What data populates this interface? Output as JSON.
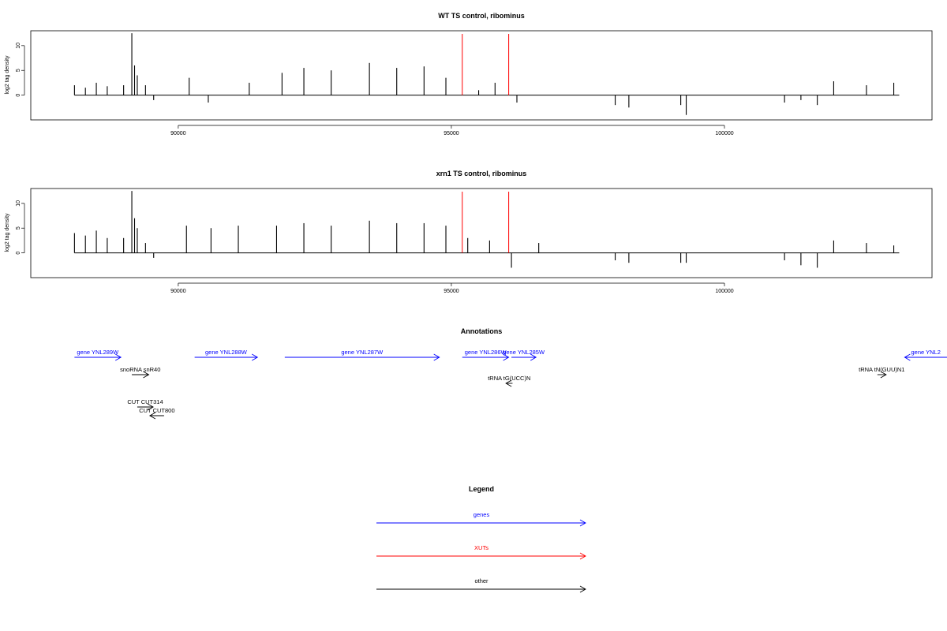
{
  "colors": {
    "gene": "#0000ff",
    "xut": "#ff0000",
    "other": "#000000",
    "marker": "#ff0000"
  },
  "panels": [
    {
      "title": "WT TS control, ribominus",
      "ylabel": "log2 tag density"
    },
    {
      "title": "xrn1 TS control, ribominus",
      "ylabel": "log2 tag density"
    }
  ],
  "chart_data": [
    {
      "type": "bar",
      "title": "WT TS control, ribominus",
      "xlabel": "",
      "ylabel": "log2 tag density",
      "xlim": [
        87300,
        103800
      ],
      "ylim": [
        -5,
        13
      ],
      "xticks": [
        90000,
        95000,
        100000
      ],
      "yticks": [
        0,
        5,
        10
      ],
      "grid": false,
      "marker_lines": [
        95200,
        96050
      ],
      "series": [
        {
          "x": [
            88100,
            88300,
            88500,
            88700,
            89000,
            89150,
            89200,
            89250,
            89400,
            89550,
            90200,
            90550,
            91300,
            91900,
            92300,
            92800,
            93500,
            94000,
            94500,
            94900,
            95500,
            95800,
            96200,
            98000,
            98250,
            99200,
            99300,
            101100,
            101400,
            101700,
            102000,
            102600,
            103100
          ],
          "values": [
            2,
            1.5,
            2.5,
            1.8,
            2,
            12.5,
            6,
            4,
            2,
            -1,
            3.5,
            -1.5,
            2.5,
            4.5,
            5.5,
            5,
            6.5,
            5.5,
            5.8,
            3.5,
            1,
            2.5,
            -1.5,
            -2,
            -2.5,
            -2,
            -4,
            -1.5,
            -1,
            -2,
            2.8,
            2,
            2.5
          ]
        }
      ]
    },
    {
      "type": "bar",
      "title": "xrn1 TS control, ribominus",
      "xlabel": "",
      "ylabel": "log2 tag density",
      "xlim": [
        87300,
        103800
      ],
      "ylim": [
        -5,
        13
      ],
      "xticks": [
        90000,
        95000,
        100000
      ],
      "yticks": [
        0,
        5,
        10
      ],
      "grid": false,
      "marker_lines": [
        95200,
        96050
      ],
      "series": [
        {
          "x": [
            88100,
            88300,
            88500,
            88700,
            89000,
            89150,
            89200,
            89250,
            89400,
            89550,
            90150,
            90600,
            91100,
            91800,
            92300,
            92800,
            93500,
            94000,
            94500,
            94900,
            95300,
            95700,
            96100,
            96600,
            98000,
            98250,
            99200,
            99300,
            101100,
            101400,
            101700,
            102000,
            102600,
            103100
          ],
          "values": [
            4,
            3.5,
            4.5,
            3,
            3,
            12.5,
            7,
            5,
            2,
            -1,
            5.5,
            5,
            5.5,
            5.5,
            6,
            5.5,
            6.5,
            6,
            6,
            5.5,
            3,
            2.5,
            -3,
            2,
            -1.5,
            -2,
            -2,
            -2,
            -1.5,
            -2.5,
            -3,
            2.5,
            2,
            1.5
          ]
        }
      ]
    }
  ],
  "annotations": {
    "title": "Annotations",
    "items": [
      {
        "label": "gene YNL289W",
        "type": "gene",
        "start": 88100,
        "end": 88950,
        "dir": "+",
        "row": 0
      },
      {
        "label": "gene YNL288W",
        "type": "gene",
        "start": 90300,
        "end": 91450,
        "dir": "+",
        "row": 0
      },
      {
        "label": "gene YNL287W",
        "type": "gene",
        "start": 91950,
        "end": 94780,
        "dir": "+",
        "row": 0
      },
      {
        "label": "gene YNL286W",
        "type": "gene",
        "start": 95200,
        "end": 96050,
        "dir": "+",
        "row": 0
      },
      {
        "label": "gene YNL285W",
        "type": "gene",
        "start": 96100,
        "end": 96550,
        "dir": "+",
        "row": 0
      },
      {
        "label": "gene YNL2",
        "type": "gene",
        "start": 103300,
        "end": 104100,
        "dir": "-",
        "row": 0
      },
      {
        "label": "snoRNA snR40",
        "type": "other",
        "start": 89150,
        "end": 89460,
        "dir": "+",
        "row": 1
      },
      {
        "label": "tRNA tN(GUU)N1",
        "type": "other",
        "start": 102800,
        "end": 102960,
        "dir": "+",
        "row": 1
      },
      {
        "label": "tRNA tG(UCC)N",
        "type": "other",
        "start": 96000,
        "end": 96120,
        "dir": "-",
        "row": 2
      },
      {
        "label": "CUT CUT314",
        "type": "other",
        "start": 89250,
        "end": 89540,
        "dir": "+",
        "row": 3
      },
      {
        "label": "CUT CUT800",
        "type": "other",
        "start": 89480,
        "end": 89740,
        "dir": "-",
        "row": 4
      }
    ]
  },
  "legend": {
    "title": "Legend",
    "items": [
      {
        "label": "genes",
        "type": "gene"
      },
      {
        "label": "XUTs",
        "type": "xut"
      },
      {
        "label": "other",
        "type": "other"
      }
    ]
  }
}
